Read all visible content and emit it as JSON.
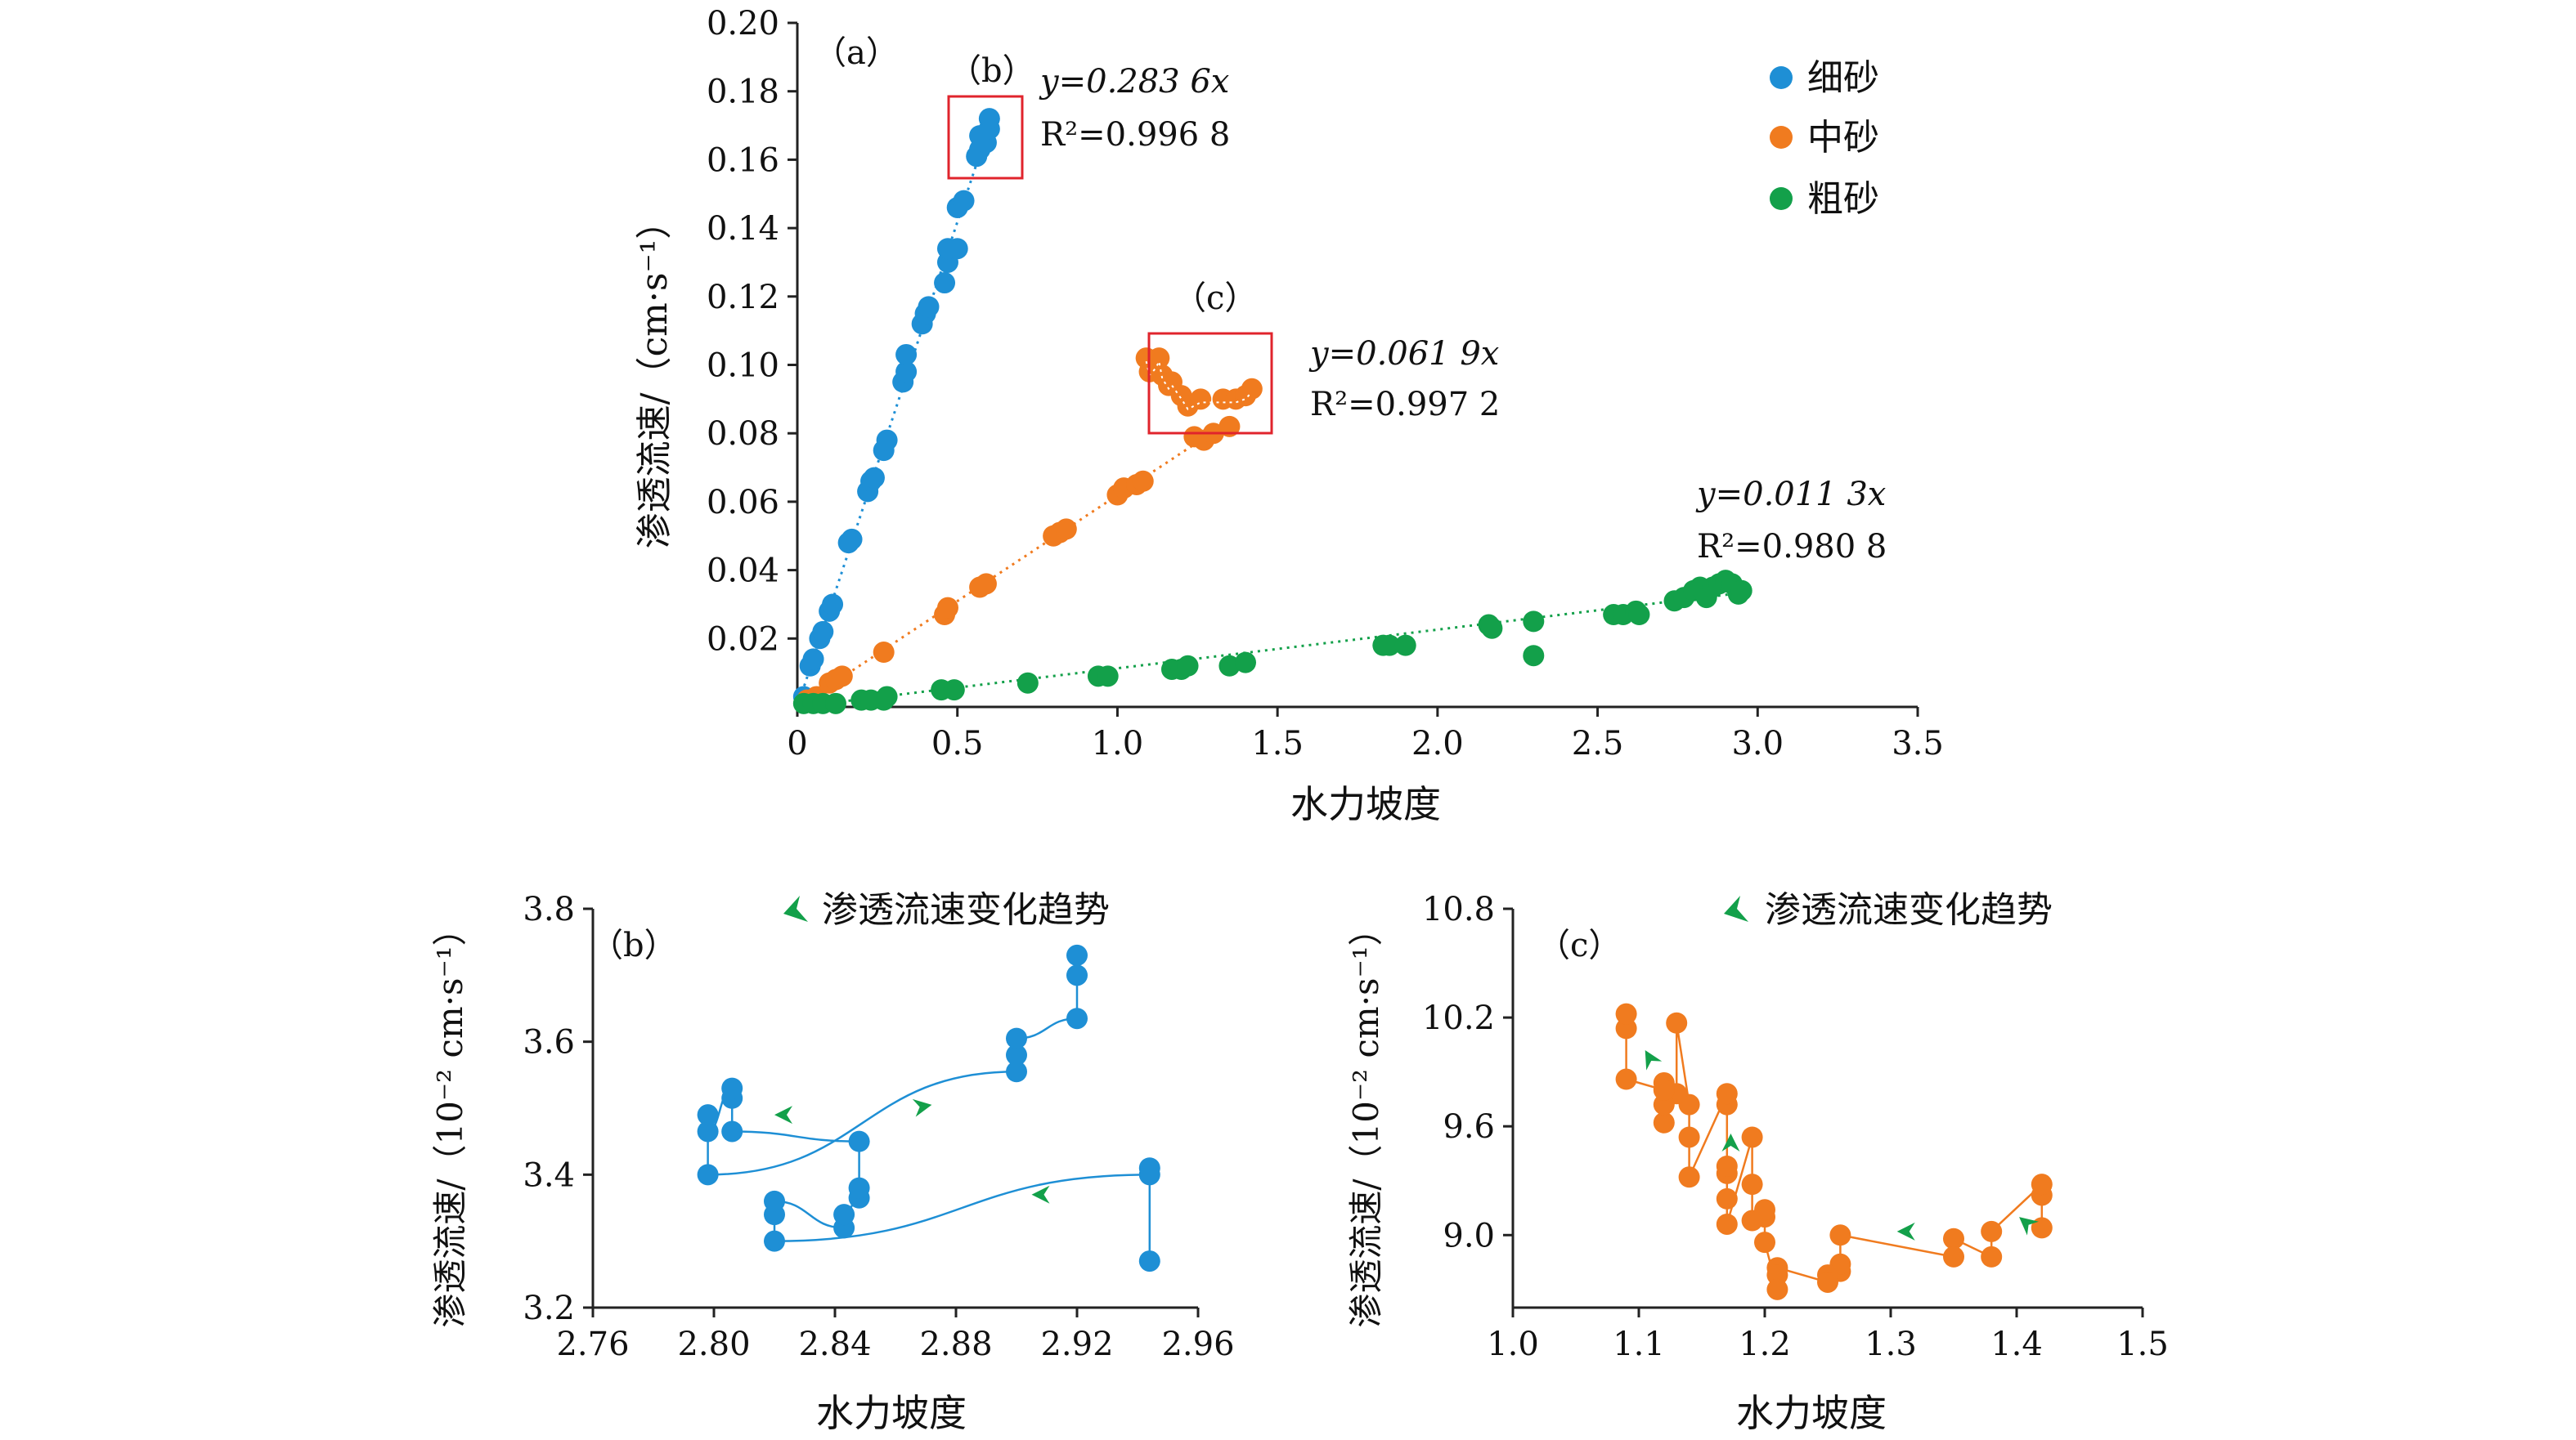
{
  "colors": {
    "fine": "#1e8fd5",
    "medium": "#f07b1f",
    "coarse": "#13a04a",
    "trend_arrow": "#13a04a",
    "box": "#e0242c",
    "axis": "#222222"
  },
  "chart_data": [
    {
      "id": "a",
      "type": "scatter",
      "panel_label": "（a）",
      "xlabel": "水力坡度",
      "ylabel": "渗透流速/（cm·s⁻¹）",
      "xlim": [
        0,
        3.5
      ],
      "ylim": [
        0,
        0.2
      ],
      "x_ticks": [
        "0",
        "0.5",
        "1.0",
        "1.5",
        "2.0",
        "2.5",
        "3.0",
        "3.5"
      ],
      "y_ticks": [
        "0.02",
        "0.04",
        "0.06",
        "0.08",
        "0.10",
        "0.12",
        "0.14",
        "0.16",
        "0.18",
        "0.20"
      ],
      "legend_position": "top-right",
      "series": [
        {
          "name": "细砂",
          "equation": "y=0.283 6x",
          "r2": "R²=0.996 8",
          "slope": 0.2836,
          "points": [
            [
              0.02,
              0.003
            ],
            [
              0.04,
              0.012
            ],
            [
              0.05,
              0.014
            ],
            [
              0.07,
              0.02
            ],
            [
              0.08,
              0.022
            ],
            [
              0.1,
              0.028
            ],
            [
              0.11,
              0.03
            ],
            [
              0.16,
              0.048
            ],
            [
              0.17,
              0.049
            ],
            [
              0.22,
              0.063
            ],
            [
              0.23,
              0.066
            ],
            [
              0.24,
              0.067
            ],
            [
              0.27,
              0.075
            ],
            [
              0.28,
              0.078
            ],
            [
              0.33,
              0.095
            ],
            [
              0.34,
              0.098
            ],
            [
              0.34,
              0.103
            ],
            [
              0.39,
              0.112
            ],
            [
              0.4,
              0.115
            ],
            [
              0.41,
              0.117
            ],
            [
              0.46,
              0.124
            ],
            [
              0.47,
              0.13
            ],
            [
              0.47,
              0.134
            ],
            [
              0.5,
              0.134
            ],
            [
              0.5,
              0.146
            ],
            [
              0.52,
              0.148
            ],
            [
              0.56,
              0.161
            ],
            [
              0.57,
              0.163
            ],
            [
              0.57,
              0.167
            ],
            [
              0.59,
              0.165
            ],
            [
              0.6,
              0.169
            ],
            [
              0.6,
              0.172
            ]
          ]
        },
        {
          "name": "中砂",
          "equation": "y=0.061 9x",
          "r2": "R²=0.997 2",
          "slope": 0.0619,
          "points": [
            [
              0.03,
              0.002
            ],
            [
              0.06,
              0.003
            ],
            [
              0.1,
              0.007
            ],
            [
              0.12,
              0.008
            ],
            [
              0.14,
              0.009
            ],
            [
              0.27,
              0.016
            ],
            [
              0.46,
              0.027
            ],
            [
              0.47,
              0.029
            ],
            [
              0.57,
              0.035
            ],
            [
              0.59,
              0.036
            ],
            [
              0.8,
              0.05
            ],
            [
              0.82,
              0.051
            ],
            [
              0.84,
              0.052
            ],
            [
              1.0,
              0.062
            ],
            [
              1.02,
              0.064
            ],
            [
              1.06,
              0.065
            ],
            [
              1.08,
              0.066
            ],
            [
              1.09,
              0.102
            ],
            [
              1.1,
              0.098
            ],
            [
              1.12,
              0.1
            ],
            [
              1.13,
              0.102
            ],
            [
              1.14,
              0.097
            ],
            [
              1.16,
              0.094
            ],
            [
              1.17,
              0.095
            ],
            [
              1.2,
              0.091
            ],
            [
              1.22,
              0.088
            ],
            [
              1.24,
              0.079
            ],
            [
              1.26,
              0.09
            ],
            [
              1.27,
              0.078
            ],
            [
              1.3,
              0.08
            ],
            [
              1.33,
              0.09
            ],
            [
              1.35,
              0.082
            ],
            [
              1.37,
              0.09
            ],
            [
              1.4,
              0.091
            ],
            [
              1.42,
              0.093
            ]
          ]
        },
        {
          "name": "粗砂",
          "equation": "y=0.011 3x",
          "r2": "R²=0.980 8",
          "slope": 0.0113,
          "points": [
            [
              0.02,
              0.001
            ],
            [
              0.05,
              0.001
            ],
            [
              0.08,
              0.001
            ],
            [
              0.12,
              0.001
            ],
            [
              0.2,
              0.002
            ],
            [
              0.23,
              0.002
            ],
            [
              0.27,
              0.002
            ],
            [
              0.28,
              0.003
            ],
            [
              0.45,
              0.005
            ],
            [
              0.49,
              0.005
            ],
            [
              0.72,
              0.007
            ],
            [
              0.94,
              0.009
            ],
            [
              0.97,
              0.009
            ],
            [
              1.17,
              0.011
            ],
            [
              1.2,
              0.011
            ],
            [
              1.22,
              0.012
            ],
            [
              1.35,
              0.012
            ],
            [
              1.4,
              0.013
            ],
            [
              1.83,
              0.018
            ],
            [
              1.85,
              0.018
            ],
            [
              1.9,
              0.018
            ],
            [
              2.16,
              0.024
            ],
            [
              2.17,
              0.023
            ],
            [
              2.3,
              0.015
            ],
            [
              2.3,
              0.025
            ],
            [
              2.55,
              0.027
            ],
            [
              2.58,
              0.027
            ],
            [
              2.62,
              0.028
            ],
            [
              2.63,
              0.027
            ],
            [
              2.74,
              0.031
            ],
            [
              2.77,
              0.032
            ],
            [
              2.8,
              0.034
            ],
            [
              2.82,
              0.035
            ],
            [
              2.84,
              0.032
            ],
            [
              2.86,
              0.035
            ],
            [
              2.88,
              0.036
            ],
            [
              2.9,
              0.037
            ],
            [
              2.92,
              0.036
            ],
            [
              2.94,
              0.033
            ],
            [
              2.95,
              0.034
            ]
          ]
        }
      ],
      "callouts": [
        "（b）",
        "（c）"
      ]
    },
    {
      "id": "b",
      "type": "line",
      "panel_label": "（b）",
      "xlabel": "水力坡度",
      "ylabel": "渗透流速/（10⁻² cm·s⁻¹）",
      "legend": "渗透流速变化趋势",
      "xlim": [
        2.76,
        2.96
      ],
      "ylim": [
        3.2,
        3.8
      ],
      "x_ticks": [
        "2.76",
        "2.80",
        "2.84",
        "2.88",
        "2.92",
        "2.96"
      ],
      "y_ticks": [
        "3.2",
        "3.4",
        "3.6",
        "3.8"
      ],
      "series": [
        {
          "name": "细砂",
          "points": [
            [
              2.944,
              3.27
            ],
            [
              2.944,
              3.41
            ],
            [
              2.944,
              3.4
            ],
            [
              2.82,
              3.3
            ],
            [
              2.82,
              3.34
            ],
            [
              2.82,
              3.36
            ],
            [
              2.843,
              3.32
            ],
            [
              2.843,
              3.34
            ],
            [
              2.848,
              3.365
            ],
            [
              2.848,
              3.38
            ],
            [
              2.848,
              3.45
            ],
            [
              2.806,
              3.465
            ],
            [
              2.806,
              3.515
            ],
            [
              2.806,
              3.53
            ],
            [
              2.798,
              3.465
            ],
            [
              2.798,
              3.49
            ],
            [
              2.798,
              3.4
            ],
            [
              2.9,
              3.555
            ],
            [
              2.9,
              3.58
            ],
            [
              2.9,
              3.605
            ],
            [
              2.92,
              3.635
            ],
            [
              2.92,
              3.7
            ],
            [
              2.92,
              3.73
            ]
          ]
        }
      ]
    },
    {
      "id": "c",
      "type": "line",
      "panel_label": "（c）",
      "xlabel": "水力坡度",
      "ylabel": "渗透流速/（10⁻² cm·s⁻¹）",
      "legend": "渗透流速变化趋势",
      "xlim": [
        1.0,
        1.5
      ],
      "ylim": [
        8.6,
        10.8
      ],
      "x_ticks": [
        "1.0",
        "1.1",
        "1.2",
        "1.3",
        "1.4",
        "1.5"
      ],
      "y_ticks": [
        "9.0",
        "9.6",
        "10.2",
        "10.8"
      ],
      "series": [
        {
          "name": "中砂",
          "points": [
            [
              1.42,
              9.04
            ],
            [
              1.42,
              9.22
            ],
            [
              1.42,
              9.28
            ],
            [
              1.38,
              9.02
            ],
            [
              1.38,
              8.88
            ],
            [
              1.35,
              8.98
            ],
            [
              1.35,
              8.88
            ],
            [
              1.26,
              9.0
            ],
            [
              1.26,
              8.8
            ],
            [
              1.26,
              8.84
            ],
            [
              1.25,
              8.78
            ],
            [
              1.25,
              8.74
            ],
            [
              1.21,
              8.82
            ],
            [
              1.21,
              8.78
            ],
            [
              1.21,
              8.7
            ],
            [
              1.2,
              8.96
            ],
            [
              1.2,
              9.1
            ],
            [
              1.2,
              9.14
            ],
            [
              1.19,
              9.08
            ],
            [
              1.19,
              9.28
            ],
            [
              1.19,
              9.54
            ],
            [
              1.17,
              9.06
            ],
            [
              1.17,
              9.2
            ],
            [
              1.17,
              9.34
            ],
            [
              1.17,
              9.38
            ],
            [
              1.17,
              9.72
            ],
            [
              1.17,
              9.78
            ],
            [
              1.14,
              9.32
            ],
            [
              1.14,
              9.54
            ],
            [
              1.14,
              9.72
            ],
            [
              1.13,
              10.17
            ],
            [
              1.13,
              9.78
            ],
            [
              1.12,
              9.84
            ],
            [
              1.12,
              9.62
            ],
            [
              1.12,
              9.72
            ],
            [
              1.12,
              9.8
            ],
            [
              1.09,
              9.86
            ],
            [
              1.09,
              10.14
            ],
            [
              1.09,
              10.22
            ]
          ]
        }
      ]
    }
  ]
}
